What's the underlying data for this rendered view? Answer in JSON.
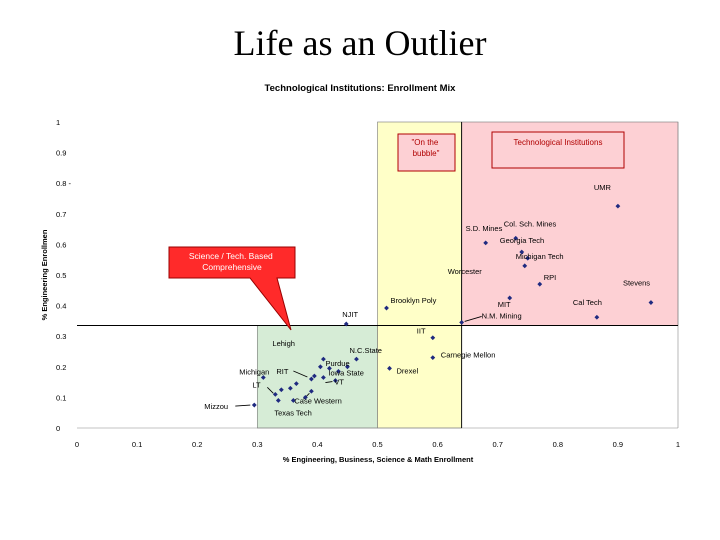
{
  "slide": {
    "title": "Life as an Outlier"
  },
  "chart_data": {
    "type": "scatter",
    "title": "Technological Institutions: Enrollment Mix",
    "xlabel": "% Engineering, Business, Science & Math Enrollment",
    "ylabel": "% Engineering Enrollmen",
    "xlim": [
      0,
      1
    ],
    "ylim": [
      0,
      1
    ],
    "x_ticks": [
      "0",
      "0.1",
      "0.2",
      "0.3",
      "0.4",
      "0.5",
      "0.6",
      "0.7",
      "0.8",
      "0.9",
      "1"
    ],
    "y_ticks": [
      "0",
      "0.1",
      "0.2",
      "0.3",
      "0.4",
      "0.5",
      "0.6",
      "0.7",
      "0.8 -",
      "0.9",
      "1"
    ],
    "reference_lines": {
      "x": 0.64,
      "y": 0.335
    },
    "regions": [
      {
        "id": "green",
        "x": [
          0.3,
          0.5
        ],
        "y": [
          0,
          0.335
        ],
        "color": "#d6ecd6"
      },
      {
        "id": "yellow",
        "x": [
          0.5,
          0.64
        ],
        "y": [
          0,
          1
        ],
        "color": "#ffffc8"
      },
      {
        "id": "pink",
        "x": [
          0.64,
          1
        ],
        "y": [
          0.335,
          1
        ],
        "color": "#fdd0d4"
      }
    ],
    "callouts": [
      {
        "id": "on-the-bubble",
        "lines": [
          "\"On the",
          "bubble\""
        ]
      },
      {
        "id": "technological-institutions",
        "lines": [
          "Technological Institutions"
        ]
      },
      {
        "id": "science-tech",
        "lines": [
          "Science / Tech. Based",
          "Comprehensive"
        ]
      }
    ],
    "marker_color": "#1f2a80",
    "points": [
      {
        "label": "UMR",
        "x": 0.9,
        "y": 0.725
      },
      {
        "label": "S.D. Mines",
        "x": 0.68,
        "y": 0.605
      },
      {
        "label": "Col. Sch. Mines",
        "x": 0.73,
        "y": 0.62
      },
      {
        "label": "Georgia Tech",
        "x": 0.74,
        "y": 0.575
      },
      {
        "label": "Michigan Tech",
        "x": 0.75,
        "y": 0.555
      },
      {
        "label": "Worcester",
        "x": 0.745,
        "y": 0.53
      },
      {
        "label": "RPI",
        "x": 0.77,
        "y": 0.47
      },
      {
        "label": "Stevens",
        "x": 0.955,
        "y": 0.41
      },
      {
        "label": "Cal Tech",
        "x": 0.865,
        "y": 0.362
      },
      {
        "label": "Brooklyn Poly",
        "x": 0.515,
        "y": 0.392
      },
      {
        "label": "MIT",
        "x": 0.72,
        "y": 0.425
      },
      {
        "label": "N.M. Mining",
        "x": 0.64,
        "y": 0.345
      },
      {
        "label": "NJIT",
        "x": 0.448,
        "y": 0.34
      },
      {
        "label": "IIT",
        "x": 0.592,
        "y": 0.295
      },
      {
        "label": "Carnegie Mellon",
        "x": 0.592,
        "y": 0.23
      },
      {
        "label": "Drexel",
        "x": 0.52,
        "y": 0.195
      },
      {
        "label": "N.C.State",
        "x": 0.465,
        "y": 0.225
      },
      {
        "label": "Purdue",
        "x": 0.45,
        "y": 0.2
      },
      {
        "label": "Iowa State",
        "x": 0.435,
        "y": 0.185
      },
      {
        "label": "Lehigh",
        "x": 0.41,
        "y": 0.225
      },
      {
        "label": "RIT",
        "x": 0.39,
        "y": 0.16
      },
      {
        "label": "VT",
        "x": 0.43,
        "y": 0.155
      },
      {
        "label": "Michigan",
        "x": 0.31,
        "y": 0.165
      },
      {
        "label": "LT",
        "x": 0.33,
        "y": 0.11
      },
      {
        "label": "Case Western",
        "x": 0.39,
        "y": 0.12
      },
      {
        "label": "Texas Tech",
        "x": 0.36,
        "y": 0.09
      },
      {
        "label": "Mizzou",
        "x": 0.295,
        "y": 0.075
      },
      {
        "label": "",
        "x": 0.34,
        "y": 0.125
      },
      {
        "label": "",
        "x": 0.355,
        "y": 0.13
      },
      {
        "label": "",
        "x": 0.365,
        "y": 0.145
      },
      {
        "label": "",
        "x": 0.38,
        "y": 0.1
      },
      {
        "label": "",
        "x": 0.395,
        "y": 0.17
      },
      {
        "label": "",
        "x": 0.405,
        "y": 0.2
      },
      {
        "label": "",
        "x": 0.41,
        "y": 0.165
      },
      {
        "label": "",
        "x": 0.42,
        "y": 0.195
      },
      {
        "label": "",
        "x": 0.335,
        "y": 0.09
      }
    ]
  }
}
